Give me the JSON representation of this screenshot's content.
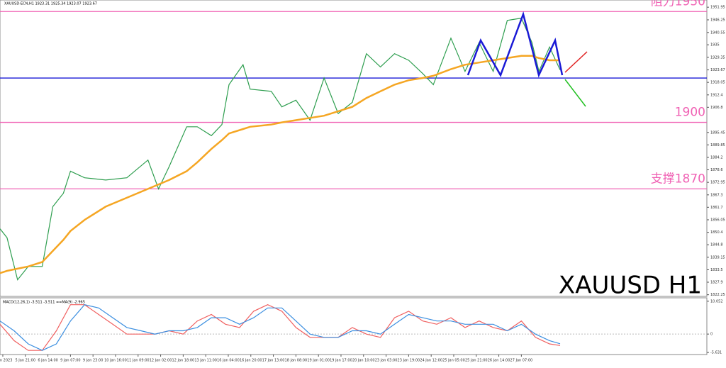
{
  "chart_data": [
    {
      "type": "line",
      "title": "XAUUSD-ECN,H1  1923.31 1925.34 1923.07 1923.67",
      "annotation": "XAUUSD H1",
      "x": [
        0,
        2.5,
        6.25,
        10,
        15,
        18.75,
        22.5,
        25,
        30,
        37.5,
        45,
        52.5,
        56.25,
        60,
        66.25,
        70,
        75,
        78.75,
        81.25,
        86.25,
        88.75,
        96.25,
        100,
        105,
        110,
        115,
        120,
        125,
        130,
        135,
        140,
        145,
        150,
        153.75,
        160,
        165,
        170,
        175,
        180,
        185,
        188.75,
        191.25,
        195,
        198.75
      ],
      "series": [
        {
          "name": "XAUUSD-ECN,H1",
          "color": "#2e9e4f",
          "values": [
            1852,
            1848,
            1829,
            1835,
            1835,
            1862,
            1868,
            1878,
            1875,
            1874,
            1875,
            1883,
            1870,
            1880,
            1898,
            1898,
            1894,
            1899,
            1917,
            1926,
            1915,
            1914,
            1907,
            1910,
            1901,
            1920,
            1904,
            1909,
            1931,
            1925,
            1931,
            1928,
            1922,
            1917,
            1938,
            1923,
            1936,
            1923,
            1946,
            1947,
            1936,
            1923,
            1934,
            1923.67
          ]
        },
        {
          "name": "MA",
          "color": "#f5a623",
          "values": [
            1832,
            1833,
            1834,
            1835,
            1837,
            1842,
            1847,
            1851,
            1856,
            1862,
            1866,
            1870,
            1872,
            1874,
            1878,
            1882,
            1888,
            1892,
            1895,
            1897,
            1898,
            1899,
            1900,
            1901,
            1902,
            1903,
            1905,
            1907,
            1911,
            1914,
            1917,
            1919,
            1920,
            1921,
            1924,
            1926,
            1927,
            1928,
            1929,
            1930,
            1930,
            1929,
            1928,
            1928
          ]
        }
      ],
      "levels": [
        {
          "label": "阻力1950",
          "value": 1950,
          "color": "#f062b4"
        },
        {
          "label": "1900",
          "value": 1900,
          "color": "#f062b4"
        },
        {
          "label": "支撑1870",
          "value": 1870,
          "color": "#f062b4"
        },
        {
          "value": 1920,
          "color": "#1a1ad6"
        }
      ],
      "xlim": [
        0,
        200
      ],
      "ylim": [
        1821.5,
        1955.2
      ],
      "yticks": [
        1951.95,
        1946.25,
        1940.55,
        1935.0,
        1929.35,
        1923.67,
        1918.05,
        1912.4,
        1906.8,
        1895.45,
        1889.85,
        1884.2,
        1878.6,
        1872.95,
        1867.3,
        1861.7,
        1856.05,
        1850.4,
        1844.8,
        1839.15,
        1833.5,
        1827.9,
        1822.25
      ]
    },
    {
      "type": "line",
      "title": "MACD(12,26,1) -3.511 -3.511  ==MA(9) -2.965",
      "x": [
        0,
        5,
        10,
        15,
        20,
        25,
        30,
        35,
        40,
        45,
        50,
        55,
        60,
        65,
        70,
        75,
        80,
        85,
        90,
        95,
        100,
        105,
        110,
        115,
        120,
        125,
        130,
        135,
        140,
        145,
        150,
        155,
        160,
        165,
        170,
        175,
        180,
        185,
        190,
        195,
        198.75
      ],
      "series": [
        {
          "name": "MACD",
          "color": "#f06060",
          "values": [
            3,
            -2,
            -5,
            -5,
            1,
            9,
            9,
            6,
            3,
            0,
            0,
            0,
            1,
            0,
            4,
            6,
            3,
            2,
            7,
            9,
            7,
            2,
            -1,
            -1,
            -1,
            2,
            0,
            -1,
            5,
            7,
            4,
            3,
            5,
            2,
            4,
            2,
            1,
            4,
            -1,
            -3,
            -3.511
          ]
        },
        {
          "name": "MA(9)",
          "color": "#3c8fe0",
          "values": [
            4,
            1,
            -3,
            -5,
            -3,
            4,
            9,
            8,
            5,
            2,
            1,
            0,
            1,
            1,
            2,
            5,
            5,
            3,
            5,
            8,
            8,
            4,
            0,
            -1,
            -1,
            1,
            1,
            0,
            3,
            6,
            5,
            4,
            4,
            3,
            3,
            3,
            1,
            3,
            0,
            -2,
            -2.965
          ]
        }
      ],
      "xlim": [
        0,
        200
      ],
      "ylim": [
        -6.26,
        11.1
      ],
      "yticks": [
        10.052,
        0.0,
        -5.631
      ],
      "xticks": [
        {
          "value": 1,
          "label": "3 Jan 2023"
        },
        {
          "value": 9,
          "label": "5 Jan 21:00"
        },
        {
          "value": 17,
          "label": "6 Jan 14:00"
        },
        {
          "value": 25,
          "label": "9 Jan 07:00"
        },
        {
          "value": 33,
          "label": "9 Jan 23:00"
        },
        {
          "value": 41,
          "label": "10 Jan 16:00"
        },
        {
          "value": 49,
          "label": "11 Jan 09:00"
        },
        {
          "value": 57,
          "label": "12 Jan 02:00"
        },
        {
          "value": 65,
          "label": "12 Jan 18:00"
        },
        {
          "value": 73,
          "label": "13 Jan 11:00"
        },
        {
          "value": 81,
          "label": "16 Jan 04:00"
        },
        {
          "value": 89,
          "label": "16 Jan 20:00"
        },
        {
          "value": 97,
          "label": "17 Jan 13:00"
        },
        {
          "value": 105,
          "label": "18 Jan 08:00"
        },
        {
          "value": 113,
          "label": "19 Jan 01:00"
        },
        {
          "value": 121,
          "label": "19 Jan 17:00"
        },
        {
          "value": 129,
          "label": "20 Jan 10:00"
        },
        {
          "value": 137,
          "label": "23 Jan 03:00"
        },
        {
          "value": 145,
          "label": "23 Jan 19:00"
        },
        {
          "value": 153,
          "label": "24 Jan 12:00"
        },
        {
          "value": 161,
          "label": "25 Jan 05:00"
        },
        {
          "value": 169,
          "label": "25 Jan 21:00"
        },
        {
          "value": 177,
          "label": "26 Jan 14:00"
        },
        {
          "value": 185,
          "label": "27 Jan 07:00"
        }
      ]
    }
  ]
}
